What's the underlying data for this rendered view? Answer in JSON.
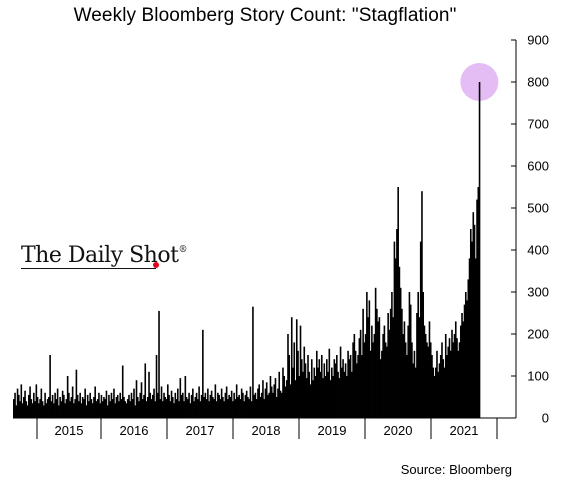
{
  "title": "Weekly Bloomberg Story Count: \"Stagflation\"",
  "source": "Source: Bloomberg",
  "brand": {
    "name": "The Daily Shot",
    "registered": "®"
  },
  "colors": {
    "bars": "#000000",
    "highlight": "#d9a7f0",
    "axis": "#000000",
    "brand_dot": "#e2001a"
  },
  "chart_data": {
    "type": "bar",
    "frequency": "weekly",
    "x_start": "2014-06",
    "x_end": "2021-10",
    "x_tick_labels": [
      "2015",
      "2016",
      "2017",
      "2018",
      "2019",
      "2020",
      "2021"
    ],
    "y_ticks": [
      0,
      100,
      200,
      300,
      400,
      500,
      600,
      700,
      800,
      900
    ],
    "ylim": [
      0,
      900
    ],
    "y_axis_position": "right",
    "grid": false,
    "highlight": {
      "point": "latest peak",
      "value": 800
    },
    "values": [
      45,
      60,
      30,
      70,
      55,
      40,
      80,
      35,
      50,
      65,
      40,
      30,
      55,
      75,
      45,
      35,
      60,
      40,
      80,
      50,
      35,
      45,
      70,
      40,
      30,
      60,
      35,
      45,
      50,
      150,
      40,
      55,
      35,
      60,
      45,
      70,
      30,
      50,
      40,
      65,
      55,
      35,
      45,
      100,
      60,
      40,
      50,
      75,
      35,
      45,
      115,
      55,
      40,
      60,
      35,
      50,
      45,
      70,
      30,
      55,
      40,
      60,
      45,
      35,
      50,
      75,
      40,
      45,
      60,
      35,
      55,
      40,
      50,
      45,
      65,
      30,
      55,
      40,
      60,
      45,
      70,
      35,
      50,
      55,
      40,
      60,
      45,
      125,
      50,
      40,
      35,
      45,
      55,
      40,
      60,
      45,
      70,
      30,
      90,
      50,
      40,
      60,
      85,
      45,
      55,
      130,
      40,
      50,
      110,
      60,
      45,
      55,
      70,
      40,
      150,
      60,
      255,
      45,
      75,
      40,
      60,
      50,
      45,
      80,
      55,
      40,
      65,
      50,
      35,
      60,
      45,
      70,
      40,
      95,
      55,
      60,
      40,
      100,
      50,
      45,
      60,
      35,
      55,
      70,
      40,
      50,
      60,
      45,
      75,
      40,
      55,
      210,
      50,
      60,
      45,
      70,
      40,
      55,
      65,
      50,
      45,
      80,
      40,
      60,
      55,
      45,
      70,
      50,
      40,
      60,
      75,
      45,
      55,
      50,
      65,
      40,
      60,
      45,
      80,
      50,
      55,
      45,
      70,
      60,
      40,
      55,
      65,
      50,
      45,
      75,
      40,
      265,
      55,
      60,
      45,
      70,
      80,
      50,
      60,
      90,
      45,
      70,
      85,
      55,
      60,
      100,
      75,
      60,
      80,
      95,
      50,
      70,
      110,
      65,
      60,
      120,
      100,
      75,
      90,
      200,
      150,
      80,
      240,
      120,
      180,
      90,
      235,
      160,
      100,
      220,
      140,
      110,
      170,
      130,
      95,
      150,
      110,
      80,
      140,
      90,
      120,
      100,
      160,
      120,
      140,
      110,
      150,
      95,
      130,
      100,
      140,
      110,
      165,
      90,
      120,
      100,
      140,
      130,
      150,
      110,
      95,
      170,
      120,
      140,
      110,
      130,
      100,
      160,
      140,
      150,
      110,
      180,
      200,
      160,
      130,
      150,
      190,
      210,
      150,
      260,
      180,
      200,
      300,
      240,
      280,
      160,
      220,
      180,
      200,
      310,
      260,
      230,
      240,
      140,
      160,
      200,
      220,
      180,
      170,
      250,
      210,
      260,
      300,
      240,
      420,
      380,
      450,
      550,
      360,
      310,
      260,
      200,
      230,
      180,
      150,
      220,
      300,
      270,
      180,
      130,
      160,
      120,
      250,
      300,
      240,
      420,
      540,
      300,
      220,
      200,
      180,
      170,
      230,
      180,
      150,
      120,
      100,
      120,
      160,
      110,
      130,
      150,
      180,
      140,
      120,
      200,
      150,
      170,
      190,
      160,
      210,
      180,
      200,
      230,
      190,
      160,
      180,
      220,
      250,
      230,
      270,
      300,
      280,
      330,
      380,
      450,
      420,
      490,
      460,
      380,
      520,
      550,
      800
    ]
  }
}
